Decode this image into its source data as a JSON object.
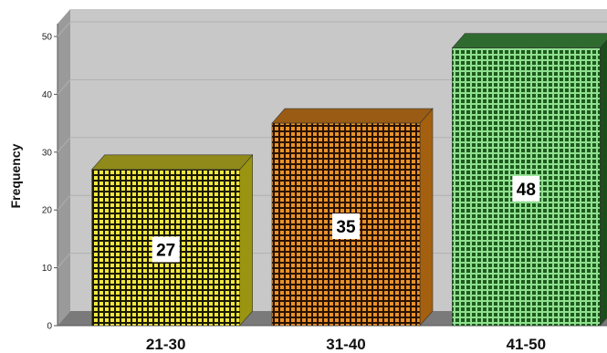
{
  "chart_data": {
    "type": "bar",
    "style": "3d",
    "ylabel": "Frequency",
    "xlabel": "",
    "categories": [
      "21-30",
      "31-40",
      "41-50"
    ],
    "values": [
      27,
      35,
      48
    ],
    "ylim": [
      0,
      50
    ],
    "yticks": [
      0,
      10,
      20,
      30,
      40,
      50
    ],
    "grid": true,
    "legend": "none",
    "data_labels": [
      "27",
      "35",
      "48"
    ],
    "colors": {
      "background": "#c8c8c8",
      "floor": "#7a7a7a",
      "bars": [
        {
          "base": "#f2e640",
          "dot": "#1a1a00",
          "top": "#8f8a1a",
          "side": "#9a9410"
        },
        {
          "base": "#e8922a",
          "dot": "#2a1200",
          "top": "#9a5c14",
          "side": "#a4600e"
        },
        {
          "base": "#1e5a1e",
          "dot": "#8ee08e",
          "top": "#2f6a2f",
          "side": "#1b4e1b"
        }
      ]
    }
  }
}
